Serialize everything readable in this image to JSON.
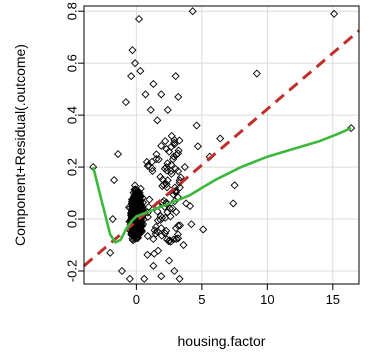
{
  "chart_data": {
    "type": "scatter",
    "title": "",
    "xlabel": "housing.factor",
    "ylabel": "Component+Residual(.outcome)",
    "xlim": [
      -4,
      17
    ],
    "ylim": [
      -0.25,
      0.82
    ],
    "x_ticks": [
      0,
      5,
      10,
      15
    ],
    "x_tick_labels": [
      "0",
      "5",
      "10",
      "15"
    ],
    "y_ticks": [
      -0.2,
      0.0,
      0.2,
      0.4,
      0.6,
      0.8
    ],
    "y_tick_labels": [
      "-0.2",
      "0.0",
      "0.2",
      "0.4",
      "0.6",
      "0.8"
    ],
    "grid": true,
    "series": [
      {
        "kind": "points",
        "marker": "open-diamond",
        "color": "#000000",
        "points": [
          [
            -3.3,
            0.2
          ],
          [
            0.2,
            0.77
          ],
          [
            4.3,
            0.8
          ],
          [
            15.1,
            0.79
          ],
          [
            16.4,
            0.35
          ],
          [
            9.2,
            0.56
          ],
          [
            6.4,
            0.31
          ],
          [
            7.5,
            0.13
          ],
          [
            7.4,
            0.06
          ],
          [
            5.1,
            -0.04
          ],
          [
            3.8,
            0.06
          ],
          [
            4.6,
            0.36
          ],
          [
            3.3,
            -0.23
          ],
          [
            2.9,
            -0.2
          ],
          [
            3.0,
            0.55
          ],
          [
            3.2,
            0.47
          ],
          [
            2.4,
            0.42
          ],
          [
            2.7,
            0.32
          ],
          [
            -0.3,
            0.65
          ],
          [
            -0.1,
            0.6
          ],
          [
            0.3,
            0.57
          ],
          [
            -0.4,
            0.55
          ],
          [
            1.3,
            0.52
          ],
          [
            1.9,
            0.48
          ],
          [
            2.3,
            0.27
          ],
          [
            2.8,
            0.23
          ],
          [
            3.3,
            0.14
          ],
          [
            4.1,
            0.05
          ],
          [
            4.7,
            0.28
          ],
          [
            3.6,
            -0.1
          ],
          [
            4.2,
            -0.02
          ],
          [
            2.5,
            -0.16
          ],
          [
            1.9,
            -0.22
          ],
          [
            -1.4,
            0.25
          ],
          [
            -1.7,
            0.15
          ],
          [
            -1.8,
            0.0
          ],
          [
            -2.0,
            -0.13
          ],
          [
            -1.1,
            -0.2
          ],
          [
            1.6,
            0.38
          ],
          [
            -0.8,
            0.45
          ],
          [
            0.7,
            0.48
          ],
          [
            1.1,
            0.42
          ],
          [
            5.6,
            0.24
          ],
          [
            2.1,
            0.07
          ],
          [
            2.6,
            0.01
          ],
          [
            1.3,
            -0.18
          ],
          [
            0.6,
            -0.23
          ],
          [
            -0.5,
            -0.23
          ],
          [
            2.2,
            0.3
          ],
          [
            3.7,
            0.2
          ]
        ]
      },
      {
        "kind": "line",
        "name": "",
        "style": "dashed",
        "color": "#c0302b",
        "x": [
          -4,
          17
        ],
        "y": [
          -0.18,
          0.725
        ]
      },
      {
        "kind": "line",
        "name": "",
        "style": "solid",
        "color": "#3cb83c",
        "x": [
          -3.3,
          -2.8,
          -2.4,
          -2.0,
          -1.6,
          -1.2,
          -0.8,
          -0.4,
          0.0,
          0.5,
          1.0,
          1.5,
          2.0,
          3.0,
          4.0,
          5.0,
          6.0,
          8.0,
          10.0,
          12.0,
          14.0,
          15.5,
          16.4
        ],
        "y": [
          0.2,
          0.1,
          0.02,
          -0.06,
          -0.09,
          -0.08,
          -0.04,
          -0.01,
          0.01,
          0.02,
          0.03,
          0.04,
          0.05,
          0.07,
          0.09,
          0.12,
          0.15,
          0.2,
          0.24,
          0.27,
          0.3,
          0.33,
          0.35
        ]
      }
    ]
  }
}
